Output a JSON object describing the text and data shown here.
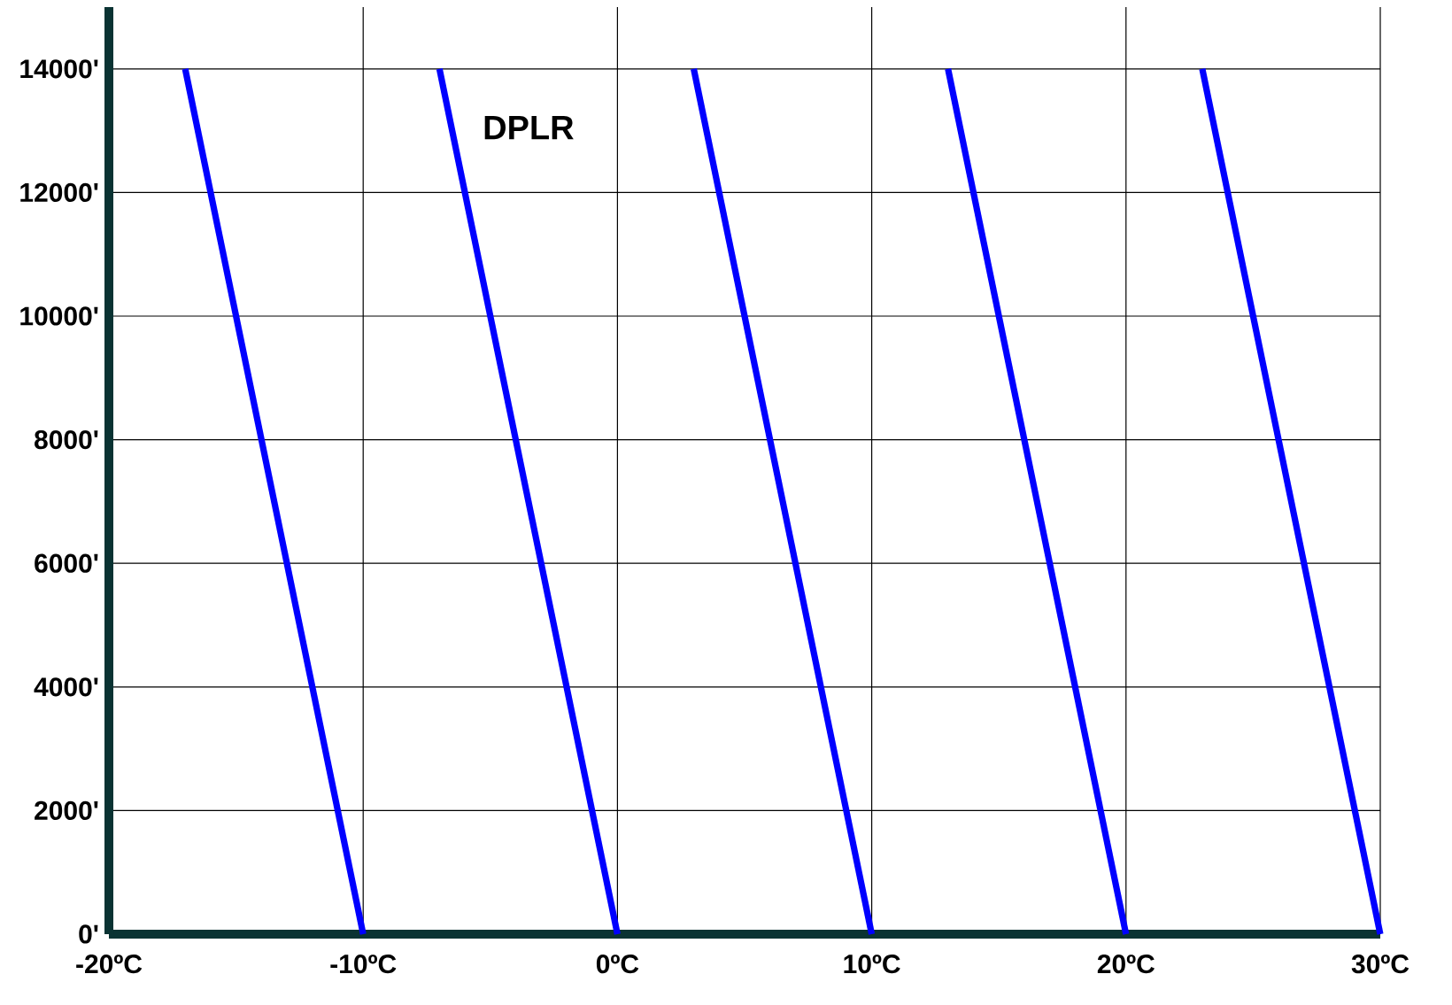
{
  "chart_data": {
    "type": "line",
    "xlim": [
      -20,
      30
    ],
    "ylim": [
      0,
      15000
    ],
    "xticks": [
      {
        "value": -20,
        "label": "-20ºC"
      },
      {
        "value": -10,
        "label": "-10ºC"
      },
      {
        "value": 0,
        "label": "0ºC"
      },
      {
        "value": 10,
        "label": "10ºC"
      },
      {
        "value": 20,
        "label": "20ºC"
      },
      {
        "value": 30,
        "label": "30ºC"
      }
    ],
    "yticks": [
      {
        "value": 0,
        "label": "0'"
      },
      {
        "value": 2000,
        "label": "2000'"
      },
      {
        "value": 4000,
        "label": "4000'"
      },
      {
        "value": 6000,
        "label": "6000'"
      },
      {
        "value": 8000,
        "label": "8000'"
      },
      {
        "value": 10000,
        "label": "10000'"
      },
      {
        "value": 12000,
        "label": "12000'"
      },
      {
        "value": 14000,
        "label": "14000'"
      }
    ],
    "grid": true,
    "annotations": [
      "DPLR"
    ],
    "series": [
      {
        "color": "#0000ff",
        "x": [
          -10,
          -17
        ],
        "values": [
          0,
          14000
        ]
      },
      {
        "color": "#0000ff",
        "x": [
          0,
          -7
        ],
        "values": [
          0,
          14000
        ]
      },
      {
        "color": "#0000ff",
        "x": [
          10,
          3
        ],
        "values": [
          0,
          14000
        ]
      },
      {
        "color": "#0000ff",
        "x": [
          20,
          13
        ],
        "values": [
          0,
          14000
        ]
      },
      {
        "color": "#0000ff",
        "x": [
          30,
          23
        ],
        "values": [
          0,
          14000
        ]
      }
    ]
  }
}
